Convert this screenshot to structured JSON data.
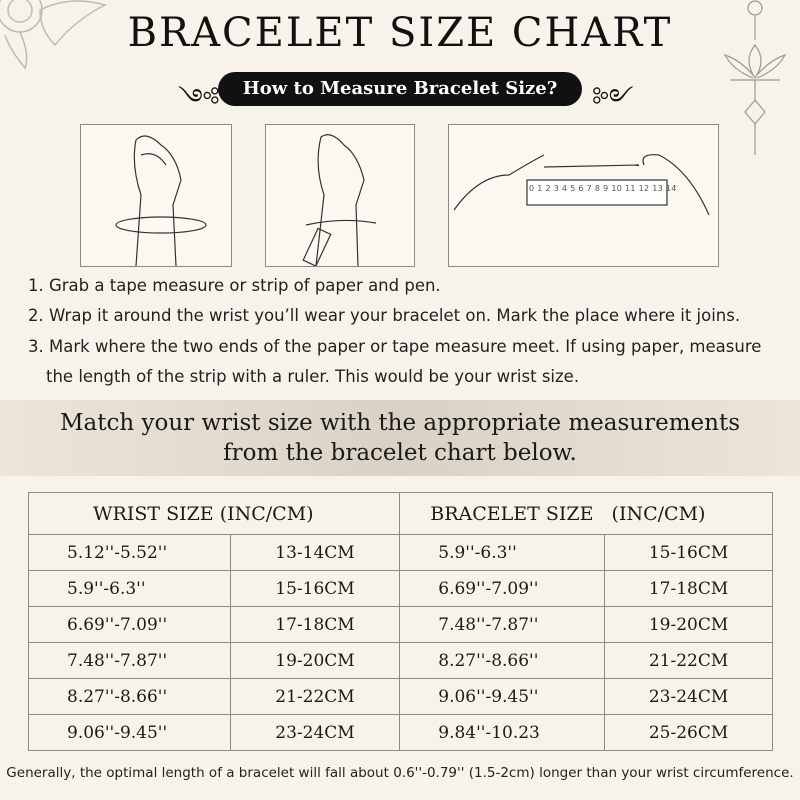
{
  "title": "BRACELET SIZE CHART",
  "subtitle": "How to Measure Bracelet Size?",
  "ruler_numbers": "0 1 2 3 4 5 6 7 8 9 10 11 12 13 14",
  "steps": [
    "1. Grab a tape measure or strip of paper and pen.",
    "2. Wrap it around the wrist you’ll wear your bracelet on. Mark the place where it joins.",
    "3. Mark where the two ends of the paper or tape measure meet. If using paper, measure",
    "the length of the strip with a ruler. This would be your wrist size."
  ],
  "band": {
    "line1": "Match your wrist size with the appropriate measurements",
    "line2": "from the bracelet chart below."
  },
  "table": {
    "headers": [
      "WRIST SIZE (INC/CM)",
      "BRACELET SIZE   (INC/CM)"
    ],
    "rows": [
      [
        "5.12''-5.52''",
        "13-14CM",
        "5.9''-6.3''",
        "15-16CM"
      ],
      [
        "5.9''-6.3''",
        "15-16CM",
        "6.69''-7.09''",
        "17-18CM"
      ],
      [
        "6.69''-7.09''",
        "17-18CM",
        "7.48''-7.87''",
        "19-20CM"
      ],
      [
        "7.48''-7.87''",
        "19-20CM",
        "8.27''-8.66''",
        "21-22CM"
      ],
      [
        "8.27''-8.66''",
        "21-22CM",
        "9.06''-9.45''",
        "23-24CM"
      ],
      [
        "9.06''-9.45''",
        "23-24CM",
        "9.84''-10.23",
        "25-26CM"
      ]
    ]
  },
  "note": "Generally, the optimal length of a bracelet will fall about 0.6''-0.79'' (1.5-2cm) longer than your wrist circumference."
}
